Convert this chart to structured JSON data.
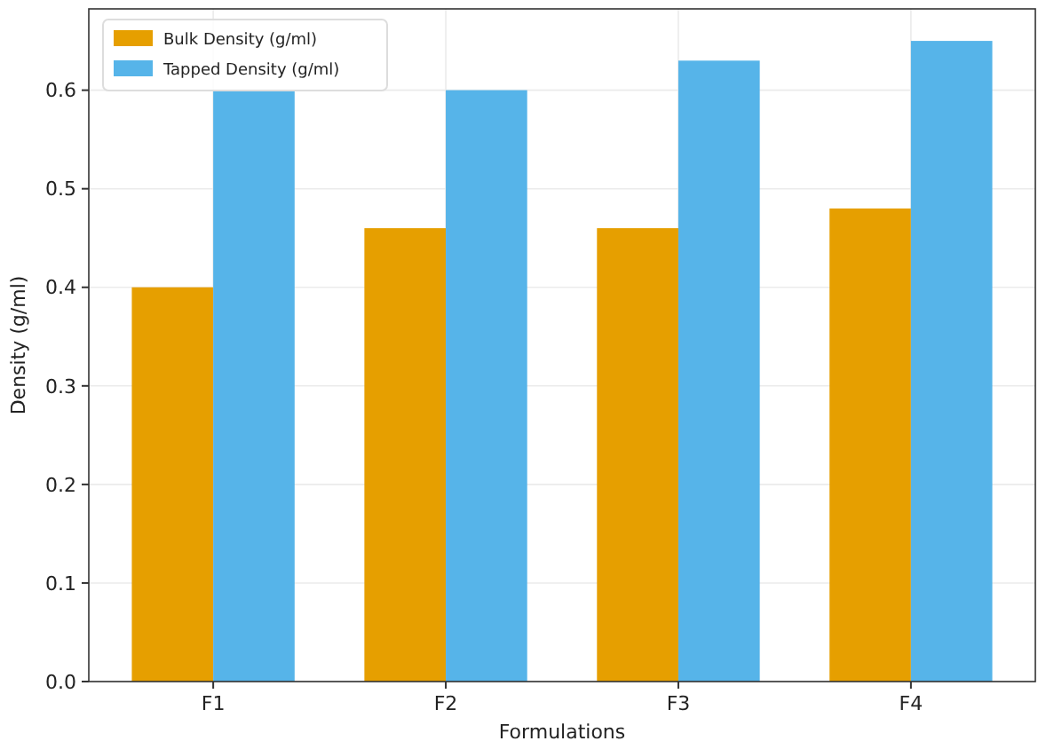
{
  "chart_data": {
    "type": "bar",
    "xlabel": "Formulations",
    "ylabel": "Density (g/ml)",
    "categories": [
      "F1",
      "F2",
      "F3",
      "F4"
    ],
    "series": [
      {
        "name": "Bulk Density (g/ml)",
        "color": "#e69f00",
        "values": [
          0.4,
          0.46,
          0.46,
          0.48
        ]
      },
      {
        "name": "Tapped Density (g/ml)",
        "color": "#56b4e9",
        "values": [
          0.6,
          0.6,
          0.63,
          0.65
        ]
      }
    ],
    "ylim": [
      0,
      0.6825
    ],
    "yticks": [
      {
        "value": 0,
        "label": "0.0"
      },
      0.1,
      0.2,
      0.3,
      0.4,
      0.5,
      0.6
    ],
    "grid": true,
    "legend": "top left"
  }
}
